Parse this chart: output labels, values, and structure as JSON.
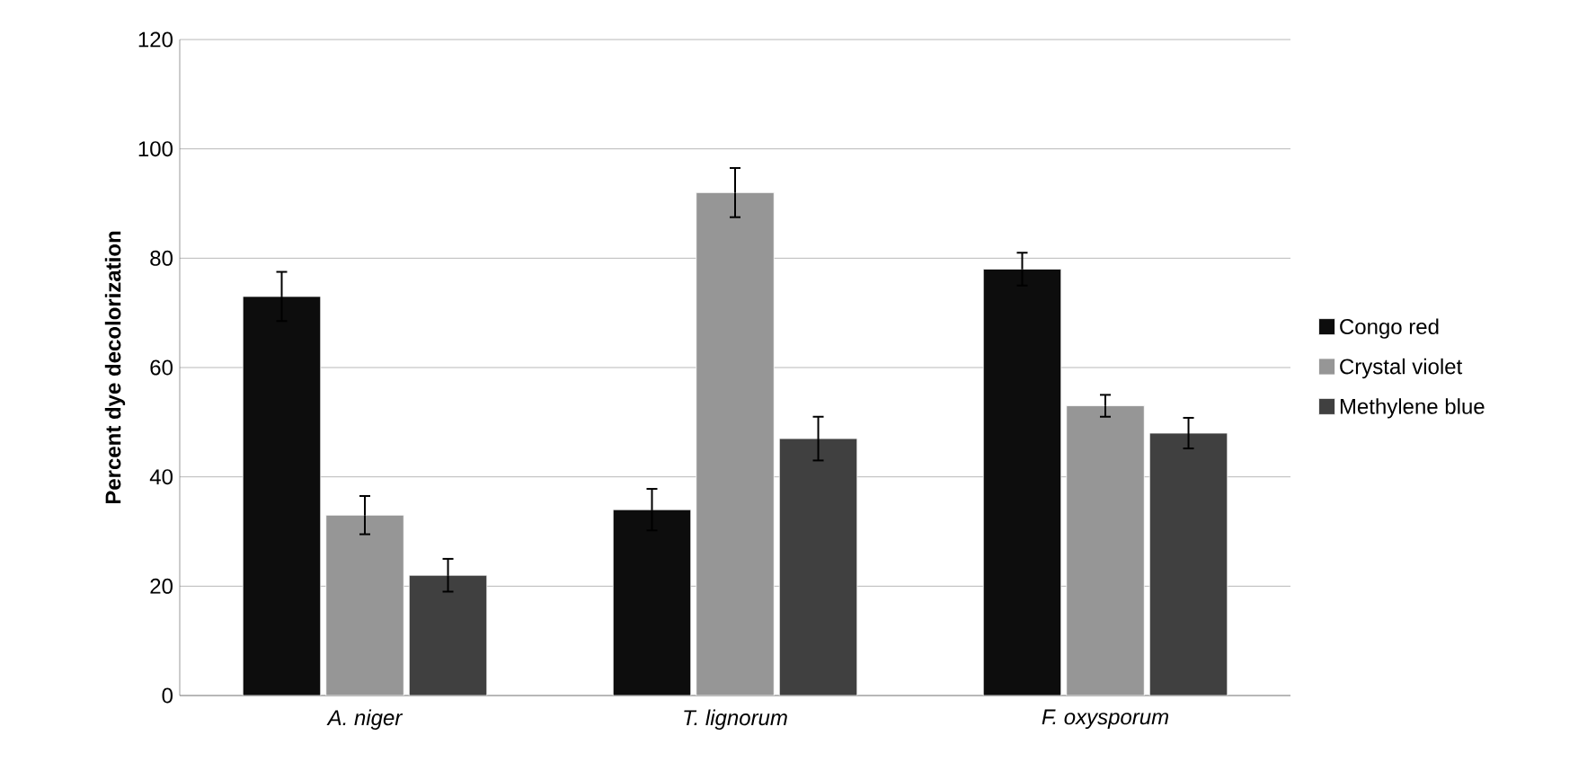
{
  "chart_data": {
    "type": "bar",
    "ylabel": "Percent dye decolorization",
    "categories": [
      "A. niger",
      "T. lignorum",
      "F. oxysporum"
    ],
    "series": [
      {
        "name": "Congo red",
        "color": "#0d0d0d",
        "values": [
          73,
          34,
          78
        ],
        "errors": [
          4.5,
          3.8,
          3
        ]
      },
      {
        "name": "Crystal violet",
        "color": "#969696",
        "values": [
          33,
          92,
          53
        ],
        "errors": [
          3.5,
          4.5,
          2
        ]
      },
      {
        "name": "Methylene blue",
        "color": "#404040",
        "values": [
          22,
          47,
          48
        ],
        "errors": [
          3,
          4,
          2.8
        ]
      }
    ],
    "ylim": [
      0,
      120
    ],
    "yticks": [
      0,
      20,
      40,
      60,
      80,
      100,
      120
    ],
    "grid": "y",
    "legend": "right"
  }
}
